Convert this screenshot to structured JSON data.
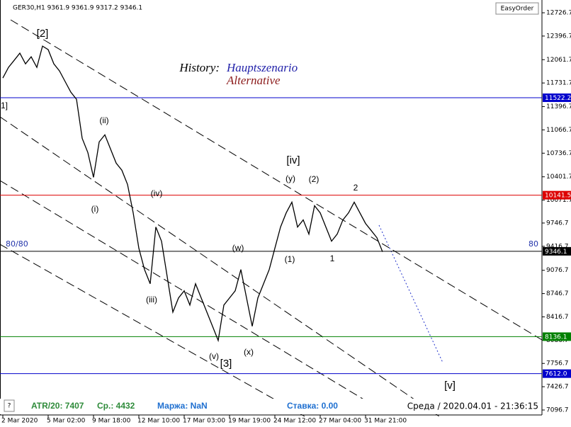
{
  "chart_data": {
    "type": "line",
    "header": "GER30,H1  9361.9 9361.9 9317.2 9346.1",
    "easyorder": "EasyOrder",
    "legend_title": "History:",
    "series_names": [
      "Hauptszenario",
      "Alternative"
    ],
    "left_note": "80/80",
    "right_note": "80",
    "info": [
      "?",
      "ATR/20: 7407",
      "Ср.: 4432",
      "Маржа: NaN",
      "Ставка: 0.00",
      "Среда  /  2020.04.01 - 21:36:15"
    ],
    "categories": [
      "2 Mar 2020",
      null,
      null,
      null,
      null,
      null,
      null,
      null,
      "5 Mar 02:00",
      null,
      null,
      null,
      null,
      null,
      null,
      null,
      "9 Mar 18:00",
      null,
      null,
      null,
      null,
      null,
      null,
      null,
      "12 Mar 10:00",
      null,
      null,
      null,
      null,
      null,
      null,
      null,
      "17 Mar 03:00",
      null,
      null,
      null,
      null,
      null,
      null,
      null,
      "19 Mar 19:00",
      null,
      null,
      null,
      null,
      null,
      null,
      null,
      "24 Mar 12:00",
      null,
      null,
      null,
      null,
      null,
      null,
      null,
      "27 Mar 04:00",
      null,
      null,
      null,
      null,
      null,
      null,
      null,
      "31 Mar 21:00",
      null,
      null,
      null
    ],
    "values": [
      11802,
      11953,
      12053,
      12154,
      12003,
      12103,
      11953,
      12254,
      12204,
      12003,
      11902,
      11751,
      11601,
      11500,
      10947,
      10746,
      10394,
      10897,
      10997,
      10796,
      10595,
      10495,
      10294,
      9891,
      9389,
      9087,
      8886,
      9690,
      9489,
      8987,
      8484,
      8685,
      8786,
      8584,
      8886,
      8685,
      8484,
      8283,
      8082,
      8584,
      8685,
      8786,
      9087,
      8685,
      8283,
      8685,
      8886,
      9087,
      9389,
      9690,
      9891,
      10042,
      9690,
      9791,
      9590,
      9992,
      9891,
      9690,
      9489,
      9590,
      9791,
      9891,
      10042,
      9891,
      9740,
      9640,
      9539,
      9339
    ],
    "color": "#000000",
    "ylim": [
      7026.3,
      12907.7
    ],
    "yticks": [
      12726.7,
      12396.7,
      12061.7,
      11731.7,
      11396.7,
      11066.7,
      10736.7,
      10401.7,
      10071.7,
      9746.7,
      9416.7,
      9076.7,
      8746.7,
      8416.7,
      8086.7,
      7756.7,
      7426.7,
      7096.7
    ],
    "levels": [
      {
        "value": 11522.2,
        "color": "#0000cc"
      },
      {
        "value": 10141.5,
        "color": "#dd0000"
      },
      {
        "value": 9346.1,
        "color": "#000000"
      },
      {
        "value": 8136.1,
        "color": "#008000"
      },
      {
        "value": 7612,
        "label": "7612.0",
        "color": "#0000cc"
      }
    ],
    "annotations": [
      "[2]",
      "1]",
      "(ii)",
      "(i)",
      "(iv)",
      "(iii)",
      "(w)",
      "(v)",
      "[3]",
      "(x)",
      "(y)",
      "[iv]",
      "(2)",
      "(1)",
      "2",
      "1",
      "[v]"
    ]
  }
}
